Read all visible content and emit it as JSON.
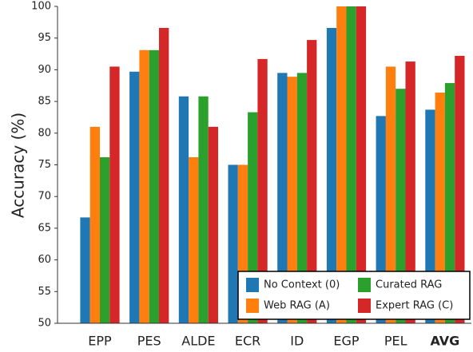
{
  "chart_data": {
    "type": "bar",
    "ylabel": "Accuracy (%)",
    "categories": [
      "EPP",
      "PES",
      "ALDE",
      "ECR",
      "ID",
      "EGP",
      "PEL",
      "AVG"
    ],
    "series": [
      {
        "name": "No Context (0)",
        "color": "#1f77b4",
        "values": [
          66.7,
          89.7,
          85.8,
          75.0,
          89.5,
          96.6,
          82.7,
          83.7
        ]
      },
      {
        "name": "Web RAG (A)",
        "color": "#ff7f0e",
        "values": [
          81.0,
          93.1,
          76.2,
          75.0,
          88.9,
          100,
          90.5,
          86.4
        ]
      },
      {
        "name": "Curated RAG",
        "color": "#2ca02c",
        "values": [
          76.2,
          93.1,
          85.8,
          83.3,
          89.5,
          100,
          87.0,
          87.9
        ]
      },
      {
        "name": "Expert RAG (C)",
        "color": "#d62728",
        "values": [
          90.5,
          96.6,
          81.0,
          91.7,
          94.7,
          100,
          91.3,
          92.2
        ]
      }
    ],
    "ylim": [
      50,
      100
    ],
    "yticks": [
      50,
      55,
      60,
      65,
      70,
      75,
      80,
      85,
      90,
      95,
      100
    ],
    "grid": false,
    "legend": "lower right"
  }
}
